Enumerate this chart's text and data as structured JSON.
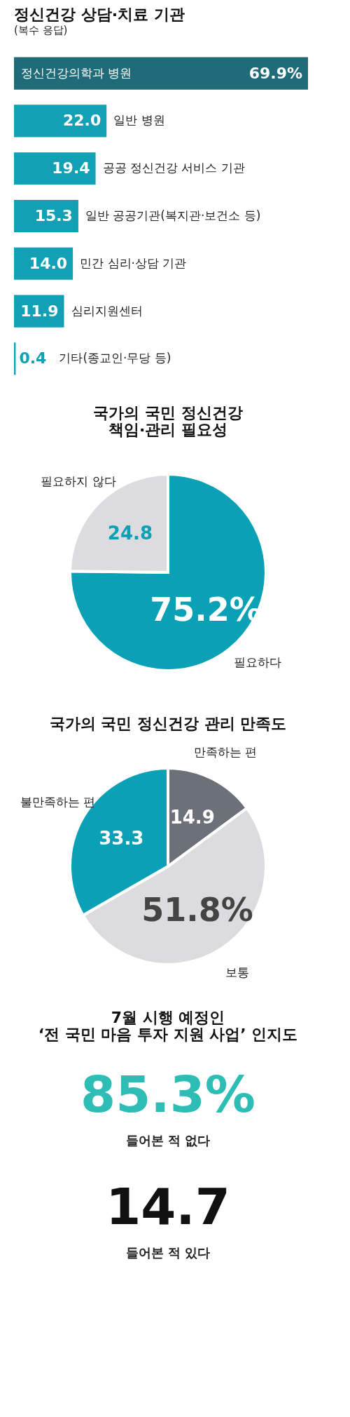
{
  "chart_data": [
    {
      "type": "bar",
      "orientation": "horizontal",
      "title": "정신건강 상담·치료 기관",
      "subtitle": "(복수 응답)",
      "categories": [
        "정신건강의학과 병원",
        "일반 병원",
        "공공 정신건강 서비스 기관",
        "일반 공공기관(복지관·보건소 등)",
        "민간 심리·상담 기관",
        "심리지원센터",
        "기타(종교인·무당 등)"
      ],
      "values": [
        69.9,
        22.0,
        19.4,
        15.3,
        14.0,
        11.9,
        0.4
      ],
      "value_labels": [
        "69.9%",
        "22.0",
        "19.4",
        "15.3",
        "14.0",
        "11.9",
        "0.4"
      ],
      "colors": [
        "#1f6b78",
        "#12a0b4",
        "#12a0b4",
        "#12a0b4",
        "#12a0b4",
        "#12a0b4",
        "#12a0b4"
      ]
    },
    {
      "type": "pie",
      "title": "국가의 국민 정신건강\n책임·관리 필요성",
      "categories": [
        "필요하다",
        "필요하지 않다"
      ],
      "values": [
        75.2,
        24.8
      ],
      "value_labels": [
        "75.2%",
        "24.8"
      ],
      "colors": [
        "#0aa0b5",
        "#dcdcde"
      ]
    },
    {
      "type": "pie",
      "title": "국가의 국민 정신건강 관리 만족도",
      "categories": [
        "만족하는 편",
        "보통",
        "불만족하는 편"
      ],
      "values": [
        14.9,
        51.8,
        33.3
      ],
      "value_labels": [
        "14.9",
        "51.8%",
        "33.3"
      ],
      "colors": [
        "#6b7079",
        "#dcdcde",
        "#0aa0b5"
      ]
    },
    {
      "type": "other",
      "title": "7월 시행 예정인\n‘전 국민 마음 투자 지원 사업’ 인지도",
      "categories": [
        "들어본 적 없다",
        "들어본 적 있다"
      ],
      "values": [
        85.3,
        14.7
      ],
      "value_labels": [
        "85.3%",
        "14.7"
      ],
      "colors": [
        "#2dbdb5",
        "#111111"
      ]
    }
  ]
}
